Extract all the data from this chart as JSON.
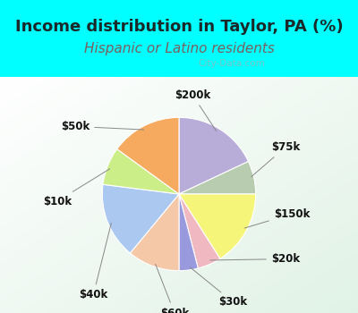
{
  "title": "Income distribution in Taylor, PA (%)",
  "subtitle": "Hispanic or Latino residents",
  "bg_cyan": "#00ffff",
  "slices": [
    {
      "label": "$200k",
      "value": 18,
      "color": "#b8acd8"
    },
    {
      "label": "$75k",
      "value": 7,
      "color": "#b8ccb0"
    },
    {
      "label": "$150k",
      "value": 16,
      "color": "#f5f57a"
    },
    {
      "label": "$20k",
      "value": 5,
      "color": "#f0b8c0"
    },
    {
      "label": "$30k",
      "value": 4,
      "color": "#9999dd"
    },
    {
      "label": "$60k",
      "value": 11,
      "color": "#f5c8a8"
    },
    {
      "label": "$40k",
      "value": 16,
      "color": "#aac8f0"
    },
    {
      "label": "$10k",
      "value": 8,
      "color": "#ccee88"
    },
    {
      "label": "$50k",
      "value": 15,
      "color": "#f5aa60"
    }
  ],
  "watermark": "City-Data.com",
  "title_color": "#1a2a2a",
  "subtitle_color": "#7a6060",
  "title_fontsize": 13,
  "subtitle_fontsize": 11,
  "label_fontsize": 8.5
}
